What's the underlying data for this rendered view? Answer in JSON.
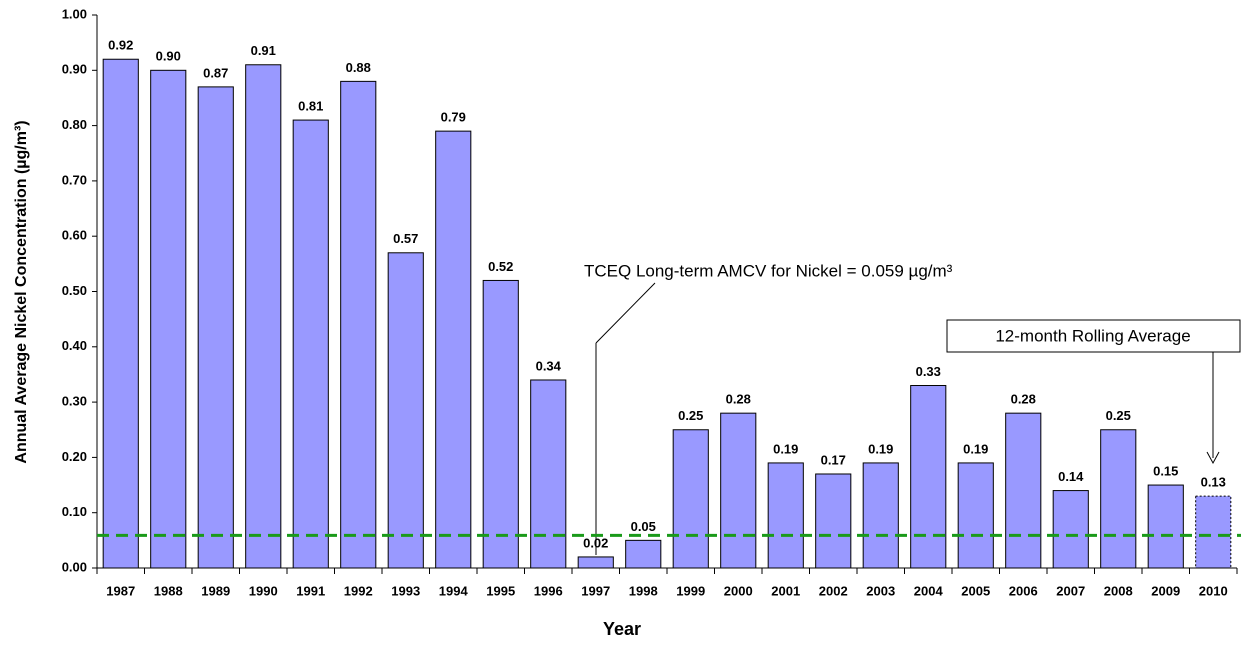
{
  "chart_data": {
    "type": "bar",
    "x_label": "Year",
    "y_label": "Annual Average Nickel Concentration (µg/m³)",
    "categories": [
      "1987",
      "1988",
      "1989",
      "1990",
      "1991",
      "1992",
      "1993",
      "1994",
      "1995",
      "1996",
      "1997",
      "1998",
      "1999",
      "2000",
      "2001",
      "2002",
      "2003",
      "2004",
      "2005",
      "2006",
      "2007",
      "2008",
      "2009",
      "2010"
    ],
    "values": [
      0.92,
      0.9,
      0.87,
      0.91,
      0.81,
      0.88,
      0.57,
      0.79,
      0.52,
      0.34,
      0.02,
      0.05,
      0.25,
      0.28,
      0.19,
      0.17,
      0.19,
      0.33,
      0.19,
      0.28,
      0.14,
      0.25,
      0.15,
      0.13
    ],
    "value_labels": [
      "0.92",
      "0.90",
      "0.87",
      "0.91",
      "0.81",
      "0.88",
      "0.57",
      "0.79",
      "0.52",
      "0.34",
      "0.02",
      "0.05",
      "0.25",
      "0.28",
      "0.19",
      "0.17",
      "0.19",
      "0.33",
      "0.19",
      "0.28",
      "0.14",
      "0.25",
      "0.15",
      "0.13"
    ],
    "color": "#9999ff",
    "ylim": [
      0,
      1
    ],
    "yticks": [
      {
        "value": 0,
        "label": "0.00"
      },
      {
        "value": 0.1,
        "label": "0.10"
      },
      {
        "value": 0.2,
        "label": "0.20"
      },
      {
        "value": 0.3,
        "label": "0.30"
      },
      {
        "value": 0.4,
        "label": "0.40"
      },
      {
        "value": 0.5,
        "label": "0.50"
      },
      {
        "value": 0.6,
        "label": "0.60"
      },
      {
        "value": 0.7,
        "label": "0.70"
      },
      {
        "value": 0.8,
        "label": "0.80"
      },
      {
        "value": 0.9,
        "label": "0.90"
      },
      {
        "value": 1,
        "label": "1.00"
      }
    ],
    "reference_line": {
      "value": 0.059,
      "color": "#1a9a1a"
    },
    "annotations": [
      "TCEQ Long-term AMCV for Nickel = 0.059 µg/m³",
      "12-month Rolling Average"
    ]
  }
}
